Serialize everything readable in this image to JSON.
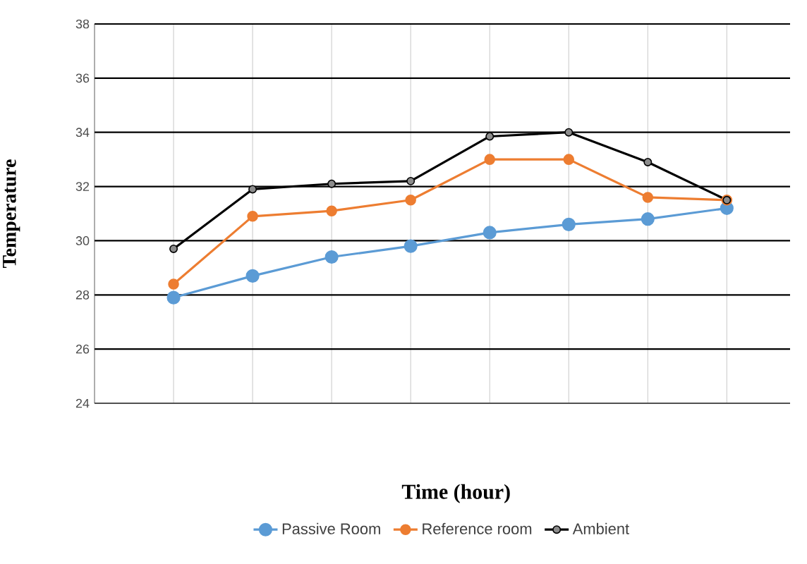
{
  "chart_data": {
    "type": "line",
    "xlabel": "Time (hour)",
    "ylabel": "Temperature",
    "categories": [
      null,
      null,
      null,
      null,
      null,
      null,
      null,
      null
    ],
    "ylim": [
      24,
      38
    ],
    "yticks": [
      24,
      26,
      28,
      30,
      32,
      34,
      36,
      38
    ],
    "grid": true,
    "legend": "bottom",
    "marker": "circle",
    "line_style": "solid",
    "series": [
      {
        "name": "Passive Room",
        "color": "#5b9bd5",
        "values": [
          27.9,
          28.7,
          29.4,
          29.8,
          30.3,
          30.6,
          30.8,
          31.2
        ]
      },
      {
        "name": "Reference room",
        "color": "#ed7d31",
        "values": [
          28.4,
          30.9,
          31.1,
          31.5,
          33.0,
          33.0,
          31.6,
          31.5
        ]
      },
      {
        "name": "Ambient",
        "color": "#000000",
        "values": [
          29.7,
          31.9,
          32.1,
          32.2,
          33.85,
          34.0,
          32.9,
          31.5
        ]
      }
    ]
  }
}
